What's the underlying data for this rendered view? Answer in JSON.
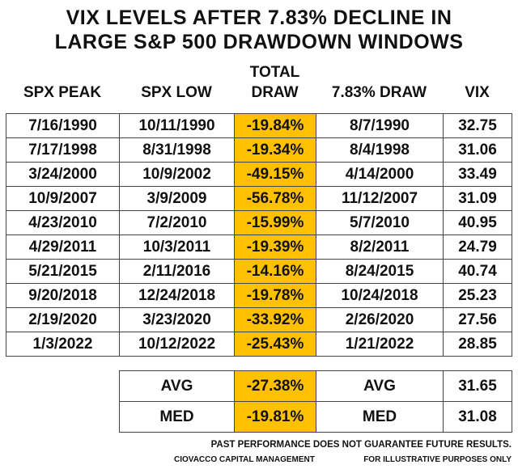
{
  "title_line1": "VIX LEVELS AFTER 7.83% DECLINE IN",
  "title_line2": "LARGE S&P 500 DRAWDOWN WINDOWS",
  "highlight_color": "#FFC000",
  "chart_data": {
    "type": "table",
    "columns": [
      "SPX PEAK",
      "SPX LOW",
      "TOTAL DRAW",
      "7.83% DRAW",
      "VIX"
    ],
    "header_parts": {
      "total_line1": "TOTAL",
      "total_line2": "DRAW"
    },
    "rows": [
      [
        "7/16/1990",
        "10/11/1990",
        "-19.84%",
        "8/7/1990",
        "32.75"
      ],
      [
        "7/17/1998",
        "8/31/1998",
        "-19.34%",
        "8/4/1998",
        "31.06"
      ],
      [
        "3/24/2000",
        "10/9/2002",
        "-49.15%",
        "4/14/2000",
        "33.49"
      ],
      [
        "10/9/2007",
        "3/9/2009",
        "-56.78%",
        "11/12/2007",
        "31.09"
      ],
      [
        "4/23/2010",
        "7/2/2010",
        "-15.99%",
        "5/7/2010",
        "40.95"
      ],
      [
        "4/29/2011",
        "10/3/2011",
        "-19.39%",
        "8/2/2011",
        "24.79"
      ],
      [
        "5/21/2015",
        "2/11/2016",
        "-14.16%",
        "8/24/2015",
        "40.74"
      ],
      [
        "9/20/2018",
        "12/24/2018",
        "-19.78%",
        "10/24/2018",
        "25.23"
      ],
      [
        "2/19/2020",
        "3/23/2020",
        "-33.92%",
        "2/26/2020",
        "27.56"
      ],
      [
        "1/3/2022",
        "10/12/2022",
        "-25.43%",
        "1/21/2022",
        "28.85"
      ]
    ],
    "summary": [
      [
        "AVG",
        "-27.38%",
        "AVG",
        "31.65"
      ],
      [
        "MED",
        "-19.81%",
        "MED",
        "31.08"
      ]
    ]
  },
  "footer": {
    "disclaimer": "PAST PERFORMANCE DOES NOT GUARANTEE FUTURE RESULTS.",
    "company": "CIOVACCO CAPITAL MANAGEMENT",
    "illustrative": "FOR ILLUSTRATIVE PURPOSES ONLY"
  }
}
